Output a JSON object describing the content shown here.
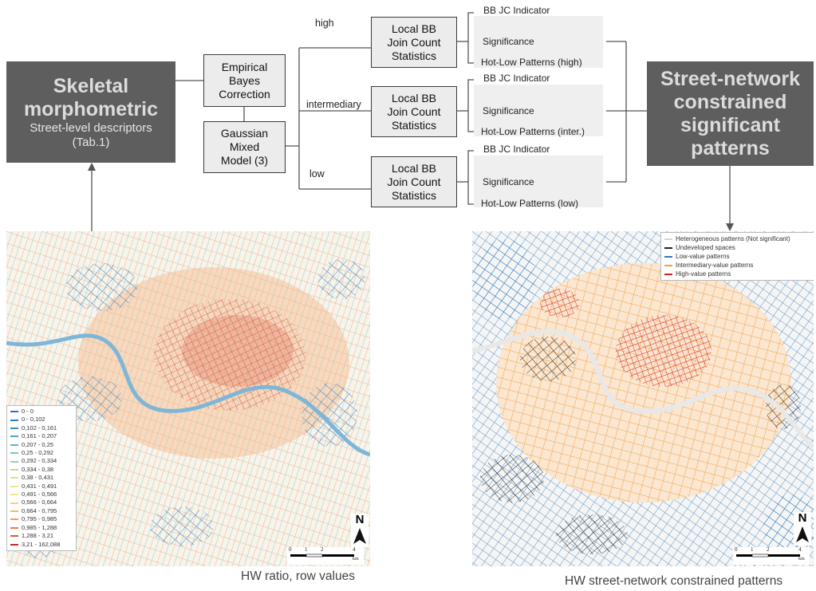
{
  "left_box": {
    "title_line1": "Skeletal",
    "title_line2": "morphometric",
    "subtitle_line1": "Street-level descriptors",
    "subtitle_line2": "(Tab.1)"
  },
  "right_box": {
    "line1": "Street-network",
    "line2": "constrained",
    "line3": "significant",
    "line4": "patterns"
  },
  "process": {
    "eb_line1": "Empirical",
    "eb_line2": "Bayes",
    "eb_line3": "Correction",
    "gmm_line1": "Gaussian",
    "gmm_line2": "Mixed",
    "gmm_line3": "Model (3)"
  },
  "branches": {
    "high": "high",
    "intermediary": "intermediary",
    "low": "low"
  },
  "bbjc": {
    "line1": "Local BB",
    "line2": "Join Count",
    "line3": "Statistics"
  },
  "outputs": {
    "indicator": "BB JC Indicator",
    "significance": "Significance",
    "hot_high": "Hot-Low Patterns (high)",
    "hot_inter": "Hot-Low Patterns (inter.)",
    "hot_low": "Hot-Low Patterns (low)"
  },
  "left_map": {
    "caption": "HW ratio, row values",
    "north": "N",
    "scale": [
      "0",
      "1",
      "2",
      "4"
    ],
    "scale_unit": "km",
    "legend": [
      {
        "label": "0 - 0",
        "color": "#2c6fb8"
      },
      {
        "label": "0 - 0,102",
        "color": "#2f7bbf"
      },
      {
        "label": "0,102 - 0,161",
        "color": "#3a8ec5"
      },
      {
        "label": "0,161 - 0,207",
        "color": "#4ea0c8"
      },
      {
        "label": "0,207 - 0,25",
        "color": "#66b2c4"
      },
      {
        "label": "0,25 - 0,292",
        "color": "#80c2b8"
      },
      {
        "label": "0,292 - 0,334",
        "color": "#9ccfa8"
      },
      {
        "label": "0,334 - 0,38",
        "color": "#b8dc98"
      },
      {
        "label": "0,38 - 0,431",
        "color": "#d2e68c"
      },
      {
        "label": "0,431 - 0,491",
        "color": "#e8ec8a"
      },
      {
        "label": "0,491 - 0,566",
        "color": "#f6e38a"
      },
      {
        "label": "0,566 - 0,664",
        "color": "#f8cf7c"
      },
      {
        "label": "0,664 - 0,795",
        "color": "#f6b86a"
      },
      {
        "label": "0,795 - 0,985",
        "color": "#f29c58"
      },
      {
        "label": "0,985 - 1,288",
        "color": "#e97c45"
      },
      {
        "label": "1,288 - 3,21",
        "color": "#dc5a36"
      },
      {
        "label": "3,21 - 162,088",
        "color": "#c62828"
      }
    ]
  },
  "right_map": {
    "caption": "HW street-network constrained patterns",
    "north": "N",
    "scale": [
      "0",
      "1",
      "2",
      "4"
    ],
    "scale_unit": "km",
    "legend": [
      {
        "label": "Heterogeneous patterns (Not significant)",
        "color": "#d6d6d6"
      },
      {
        "label": "Undeveloped spaces",
        "color": "#222222"
      },
      {
        "label": "Low-value patterns",
        "color": "#2f7bbf"
      },
      {
        "label": "Intermediary-value patterns",
        "color": "#f0a050"
      },
      {
        "label": "High-value patterns",
        "color": "#d62020"
      }
    ]
  }
}
